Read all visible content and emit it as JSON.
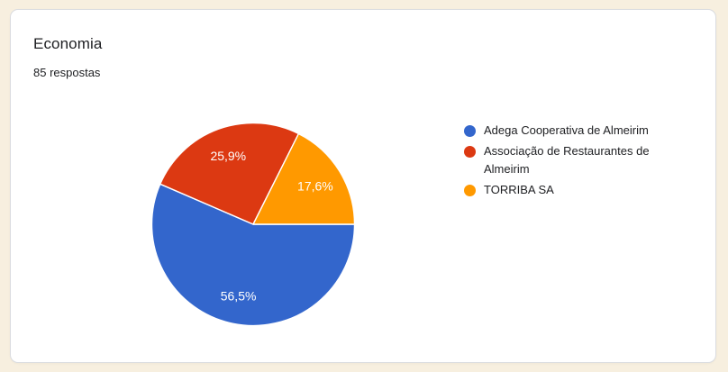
{
  "page": {
    "background_color": "#f7efdf"
  },
  "card": {
    "title": "Economia",
    "subtitle": "85 respostas",
    "background_color": "#ffffff",
    "border_color": "#dadce0"
  },
  "chart_data": {
    "type": "pie",
    "title": "Economia",
    "responses_label": "85 respostas",
    "legend_position": "right",
    "start_angle_deg": 0,
    "direction": "clockwise",
    "separator_color": "#ffffff",
    "label_color": "#ffffff",
    "slices": [
      {
        "label": "Adega Cooperativa de Almeirim",
        "value_percent": 56.5,
        "display": "56,5%",
        "color": "#3366cc"
      },
      {
        "label": "Associação de Restaurantes de Almeirim",
        "value_percent": 25.9,
        "display": "25,9%",
        "color": "#dc3912"
      },
      {
        "label": "TORRIBA SA",
        "value_percent": 17.6,
        "display": "17,6%",
        "color": "#ff9900"
      }
    ]
  }
}
